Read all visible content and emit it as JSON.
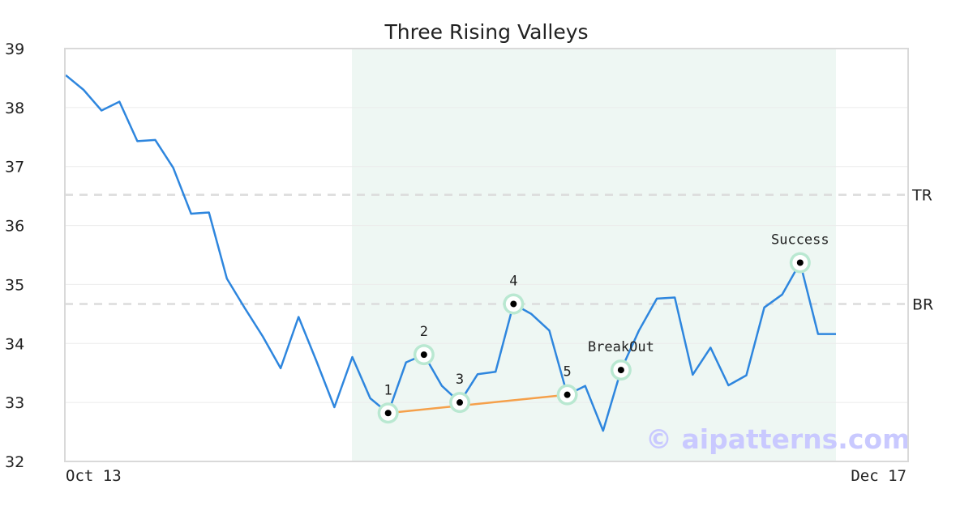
{
  "chart_data": {
    "type": "line",
    "title": "Three Rising Valleys",
    "xlabel": "",
    "ylabel": "",
    "ylim": [
      32,
      39
    ],
    "yticks": [
      "32",
      "33",
      "34",
      "35",
      "36",
      "37",
      "38",
      "39"
    ],
    "x_first_label": "Oct 13",
    "x_last_label": "Dec 17",
    "grid": true,
    "series": [
      {
        "color": "#2e86de",
        "values": [
          38.55,
          38.3,
          37.95,
          38.1,
          37.43,
          37.45,
          36.98,
          36.2,
          36.22,
          35.1,
          34.6,
          34.12,
          33.58,
          34.45,
          33.7,
          32.92,
          33.77,
          33.07,
          32.82,
          33.68,
          33.81,
          33.28,
          33.0,
          33.48,
          33.52,
          34.67,
          34.5,
          34.22,
          33.13,
          33.28,
          32.52,
          33.55,
          34.22,
          34.76,
          34.78,
          33.47,
          33.93,
          33.29,
          33.46,
          34.61,
          34.83,
          35.37,
          34.16,
          34.16
        ]
      }
    ],
    "highlight_range": [
      16,
      43
    ],
    "highlight_color": "#eef7f3",
    "levels": [
      {
        "label": "TR",
        "value": 36.52
      },
      {
        "label": "BR",
        "value": 34.67
      }
    ],
    "trendline": {
      "from": 18,
      "to": 28,
      "color": "#f5a04a"
    },
    "annotations": [
      {
        "label": "1",
        "index": 18,
        "value": 32.82,
        "pos": "above"
      },
      {
        "label": "2",
        "index": 20,
        "value": 33.81,
        "pos": "above"
      },
      {
        "label": "3",
        "index": 22,
        "value": 33.0,
        "pos": "above"
      },
      {
        "label": "4",
        "index": 25,
        "value": 34.67,
        "pos": "above"
      },
      {
        "label": "5",
        "index": 28,
        "value": 33.13,
        "pos": "above"
      },
      {
        "label": "BreakOut",
        "index": 31,
        "value": 33.55,
        "pos": "above"
      },
      {
        "label": "Success",
        "index": 41,
        "value": 35.37,
        "pos": "above"
      }
    ],
    "marker_color": "#b9e8d1",
    "watermark": "© aipatterns.com"
  }
}
